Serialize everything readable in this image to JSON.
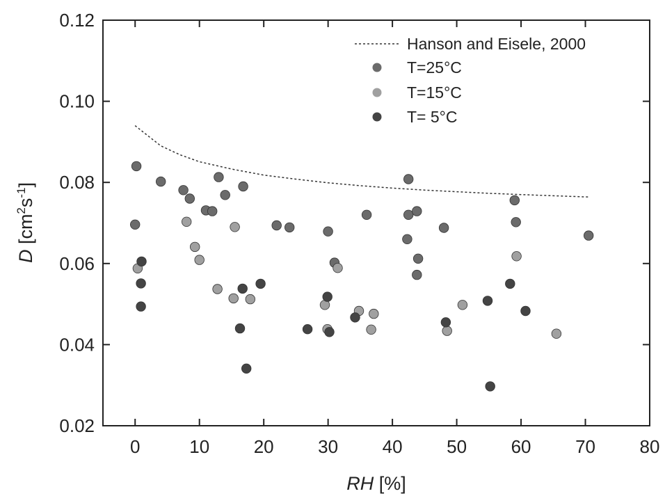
{
  "chart_data": {
    "type": "scatter",
    "xlabel": {
      "italic": "RH",
      "rest": " [%]"
    },
    "ylabel": {
      "italic": "D",
      "rest": " [cm",
      "sup1": "2",
      "mid": "s",
      "sup2": "-1",
      "end": "]"
    },
    "xlim": [
      -5,
      80
    ],
    "ylim": [
      0.02,
      0.12
    ],
    "xticks": [
      0,
      10,
      20,
      30,
      40,
      50,
      60,
      70,
      80
    ],
    "yticks": [
      0.02,
      0.04,
      0.06,
      0.08,
      0.1,
      0.12
    ],
    "ytick_labels": [
      "0.02",
      "0.04",
      "0.06",
      "0.08",
      "0.10",
      "0.12"
    ],
    "legend_position": "top-right",
    "reference_line": {
      "name": "Hanson and Eisele, 2000",
      "style": "dotted",
      "color": "#333333",
      "points": [
        [
          0,
          0.094
        ],
        [
          2,
          0.0915
        ],
        [
          4,
          0.089
        ],
        [
          7,
          0.0868
        ],
        [
          10,
          0.0851
        ],
        [
          15,
          0.0833
        ],
        [
          20,
          0.0818
        ],
        [
          25,
          0.0808
        ],
        [
          30,
          0.0799
        ],
        [
          35,
          0.0792
        ],
        [
          40,
          0.0786
        ],
        [
          45,
          0.0781
        ],
        [
          50,
          0.0777
        ],
        [
          55,
          0.0773
        ],
        [
          60,
          0.077
        ],
        [
          65,
          0.0767
        ],
        [
          70.5,
          0.0764
        ]
      ]
    },
    "series": [
      {
        "name": "T=25°C",
        "color": "#6b6b6b",
        "points": [
          [
            0.2,
            0.084
          ],
          [
            0.0,
            0.0696
          ],
          [
            4.0,
            0.0802
          ],
          [
            7.5,
            0.0781
          ],
          [
            8.5,
            0.076
          ],
          [
            11.0,
            0.0731
          ],
          [
            12.0,
            0.0729
          ],
          [
            13.0,
            0.0813
          ],
          [
            14.0,
            0.0769
          ],
          [
            16.8,
            0.079
          ],
          [
            22.0,
            0.0694
          ],
          [
            24.0,
            0.0689
          ],
          [
            30.0,
            0.0679
          ],
          [
            31.0,
            0.0602
          ],
          [
            36.0,
            0.072
          ],
          [
            42.5,
            0.0808
          ],
          [
            42.5,
            0.072
          ],
          [
            42.3,
            0.066
          ],
          [
            43.8,
            0.0729
          ],
          [
            44.0,
            0.0612
          ],
          [
            43.8,
            0.0572
          ],
          [
            48.0,
            0.0688
          ],
          [
            59.0,
            0.0756
          ],
          [
            59.2,
            0.0702
          ],
          [
            70.5,
            0.0669
          ]
        ]
      },
      {
        "name": "T=15°C",
        "color": "#a0a0a0",
        "points": [
          [
            0.4,
            0.0588
          ],
          [
            8.0,
            0.0703
          ],
          [
            9.3,
            0.0641
          ],
          [
            10.0,
            0.0609
          ],
          [
            12.8,
            0.0537
          ],
          [
            15.5,
            0.069
          ],
          [
            15.3,
            0.0514
          ],
          [
            17.9,
            0.0512
          ],
          [
            29.5,
            0.0498
          ],
          [
            29.9,
            0.0438
          ],
          [
            31.5,
            0.0589
          ],
          [
            34.8,
            0.0483
          ],
          [
            36.7,
            0.0437
          ],
          [
            37.1,
            0.0476
          ],
          [
            48.5,
            0.0434
          ],
          [
            50.9,
            0.0498
          ],
          [
            59.3,
            0.0618
          ],
          [
            65.5,
            0.0427
          ]
        ]
      },
      {
        "name": "T= 5°C",
        "color": "#444444",
        "points": [
          [
            1.0,
            0.0605
          ],
          [
            0.9,
            0.0551
          ],
          [
            0.9,
            0.0494
          ],
          [
            16.7,
            0.0538
          ],
          [
            16.3,
            0.044
          ],
          [
            17.3,
            0.0341
          ],
          [
            19.5,
            0.055
          ],
          [
            26.8,
            0.0438
          ],
          [
            29.9,
            0.0518
          ],
          [
            30.2,
            0.0431
          ],
          [
            34.2,
            0.0467
          ],
          [
            48.3,
            0.0455
          ],
          [
            54.8,
            0.0508
          ],
          [
            55.2,
            0.0297
          ],
          [
            58.3,
            0.055
          ],
          [
            60.7,
            0.0483
          ]
        ]
      }
    ]
  }
}
